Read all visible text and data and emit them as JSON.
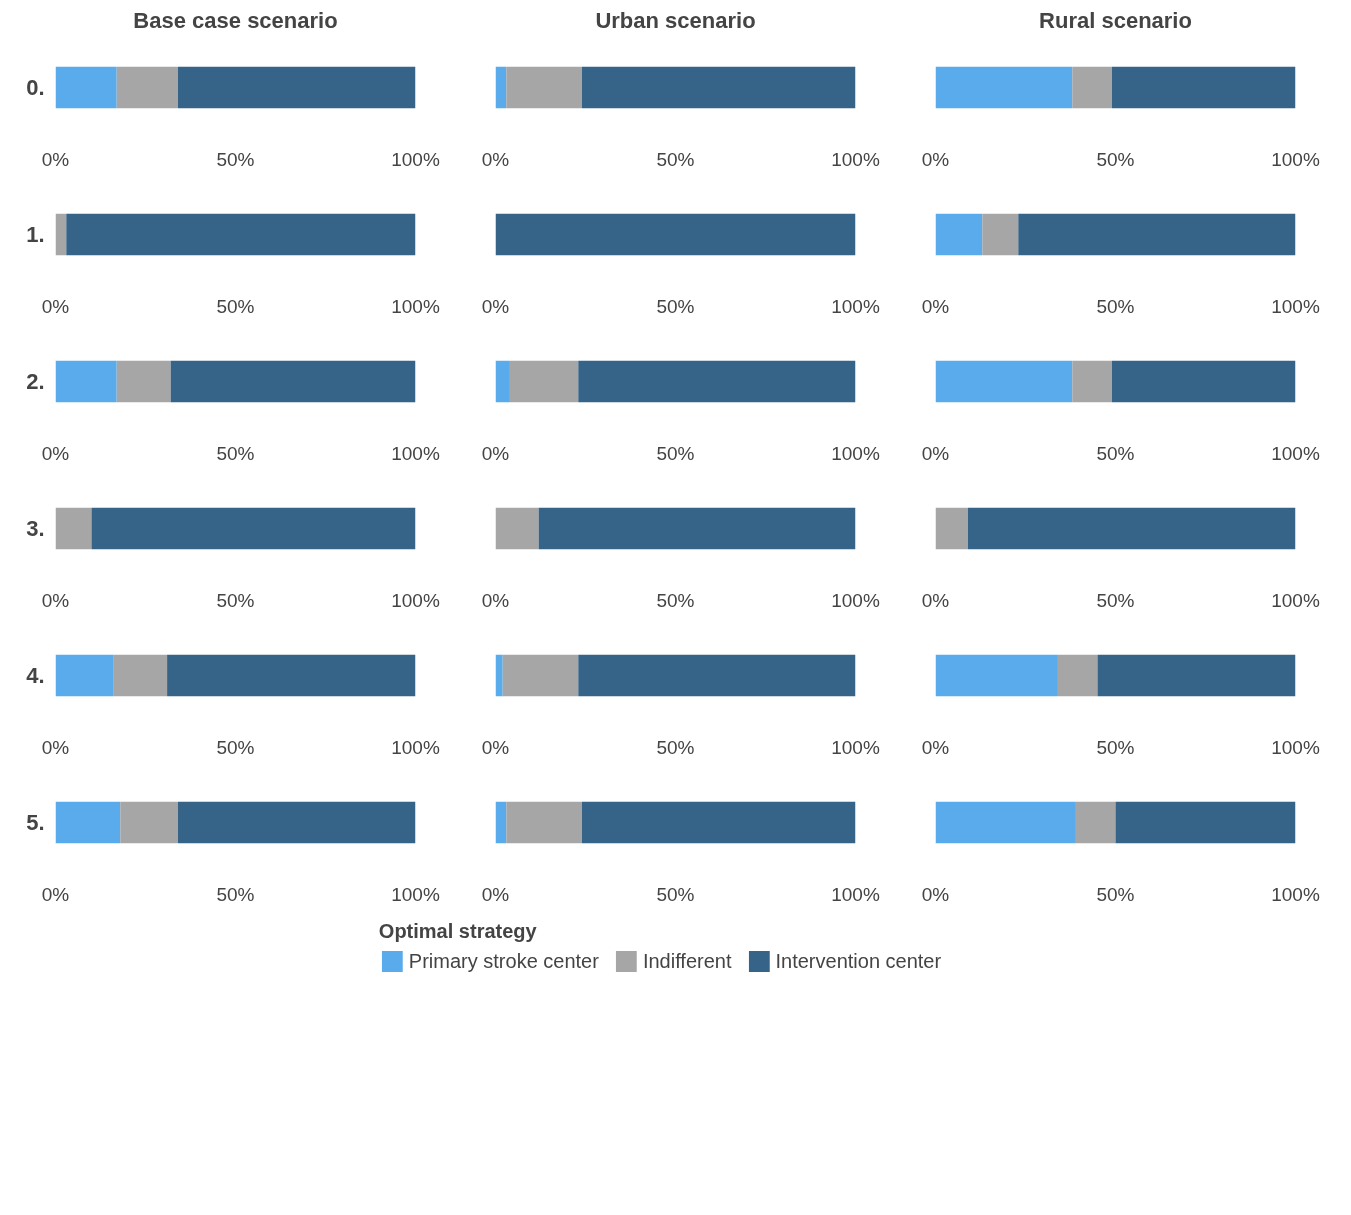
{
  "chart_data": [
    {
      "type": "bar",
      "orientation": "horizontal",
      "stacked": true,
      "title": "Base case scenario",
      "categories": [
        "0.",
        "1.",
        "2.",
        "3.",
        "4.",
        "5."
      ],
      "series": [
        {
          "color": "#5aabeb",
          "values": [
            17,
            null,
            17,
            null,
            16,
            18
          ]
        },
        {
          "color": "#a6a6a6",
          "values": [
            17,
            3,
            15,
            10,
            15,
            16
          ]
        },
        {
          "color": "#366388",
          "values": [
            66,
            97,
            68,
            90,
            69,
            66
          ]
        }
      ],
      "xlim": [
        0,
        100
      ],
      "xticks": [
        {
          "value": 0,
          "label": "0%"
        },
        {
          "value": 50,
          "label": "50%"
        },
        {
          "value": 100,
          "label": "100%"
        }
      ]
    },
    {
      "type": "bar",
      "orientation": "horizontal",
      "stacked": true,
      "title": "Urban scenario",
      "categories": [
        null,
        null,
        null,
        null,
        null,
        null
      ],
      "legend": "bottom",
      "legend_title": "Optimal strategy",
      "series": [
        {
          "name": "Primary stroke center",
          "color": "#5aabeb",
          "values": [
            3,
            null,
            4,
            null,
            2,
            3
          ]
        },
        {
          "name": "Indifferent",
          "color": "#a6a6a6",
          "values": [
            21,
            null,
            19,
            12,
            21,
            21
          ]
        },
        {
          "name": "Intervention center",
          "color": "#366388",
          "values": [
            76,
            100,
            77,
            88,
            77,
            76
          ]
        }
      ],
      "xlim": [
        0,
        100
      ],
      "xticks": [
        {
          "value": 0,
          "label": "0%"
        },
        {
          "value": 50,
          "label": "50%"
        },
        {
          "value": 100,
          "label": "100%"
        }
      ]
    },
    {
      "type": "bar",
      "orientation": "horizontal",
      "stacked": true,
      "title": "Rural scenario",
      "categories": [
        null,
        null,
        null,
        null,
        null,
        null
      ],
      "series": [
        {
          "color": "#5aabeb",
          "values": [
            38,
            13,
            38,
            null,
            34,
            39
          ]
        },
        {
          "color": "#a6a6a6",
          "values": [
            11,
            10,
            11,
            9,
            11,
            11
          ]
        },
        {
          "color": "#366388",
          "values": [
            51,
            77,
            51,
            91,
            55,
            50
          ]
        }
      ],
      "xlim": [
        0,
        100
      ],
      "xticks": [
        {
          "value": 0,
          "label": "0%"
        },
        {
          "value": 50,
          "label": "50%"
        },
        {
          "value": 100,
          "label": "100%"
        }
      ]
    }
  ]
}
